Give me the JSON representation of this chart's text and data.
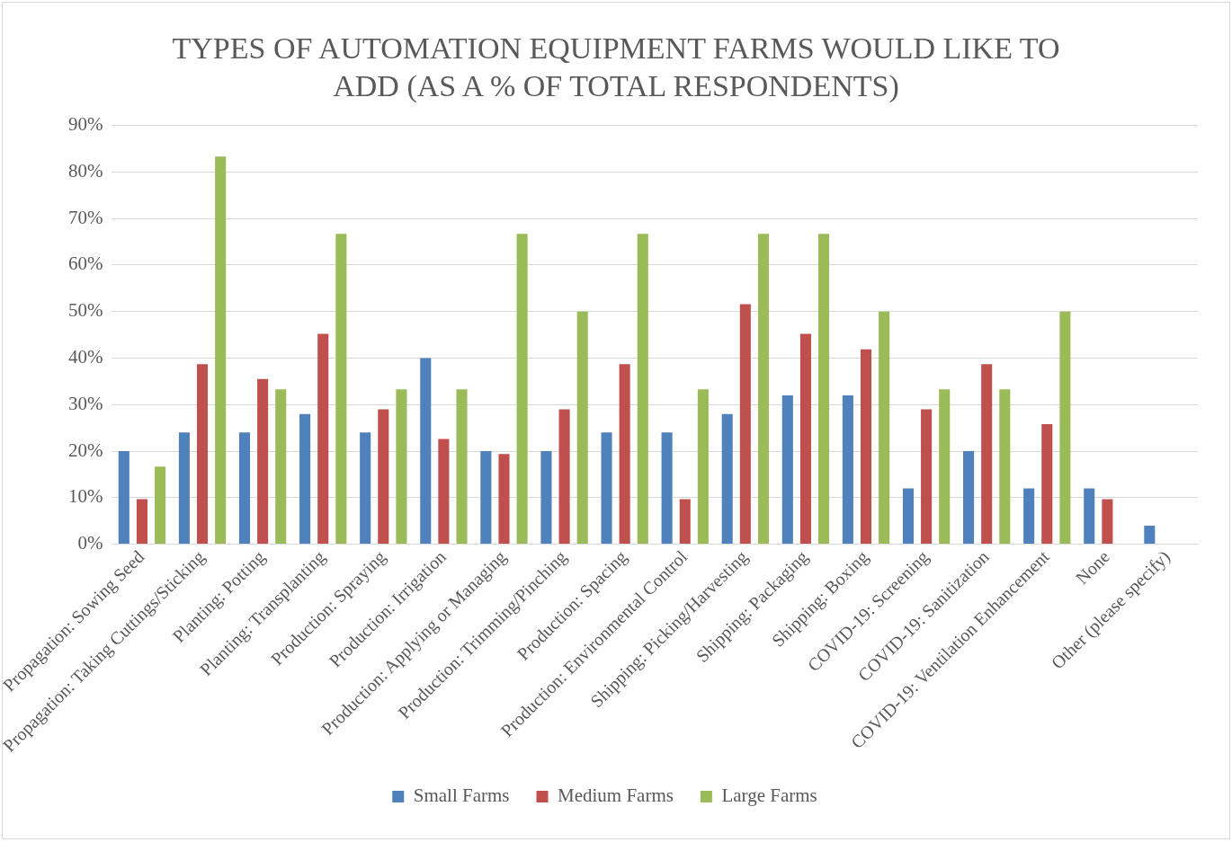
{
  "chart_data": {
    "type": "bar",
    "title": "TYPES OF AUTOMATION EQUIPMENT FARMS WOULD LIKE TO ADD (AS A % OF TOTAL RESPONDENTS)",
    "categories": [
      "Propagation: Sowing Seed",
      "Propagation: Taking Cuttings/Sticking",
      "Planting: Potting",
      "Planting: Transplanting",
      "Production: Spraying",
      "Production: Irrigation",
      "Production: Applying or Managing",
      "Production: Trimming/Pinching",
      "Production: Spacing",
      "Production: Environmental Control",
      "Shipping: Picking/Harvesting",
      "Shipping: Packaging",
      "Shipping: Boxing",
      "COVID-19: Screening",
      "COVID-19: Sanitization",
      "COVID-19: Ventilation Enhancement",
      "None",
      "Other (please specify)"
    ],
    "series": [
      {
        "name": "Small Farms",
        "color": "#4f81bd",
        "values": [
          20,
          24,
          24,
          28,
          24,
          40,
          20,
          20,
          24,
          24,
          28,
          32,
          32,
          12,
          20,
          12,
          12,
          4
        ]
      },
      {
        "name": "Medium Farms",
        "color": "#c0504d",
        "values": [
          9.7,
          38.7,
          35.5,
          45.2,
          29,
          22.6,
          19.4,
          29,
          38.7,
          9.7,
          51.6,
          45.2,
          41.9,
          29,
          38.7,
          25.8,
          9.7,
          0
        ]
      },
      {
        "name": "Large Farms",
        "color": "#9bbb59",
        "values": [
          16.7,
          83.3,
          33.3,
          66.7,
          33.3,
          33.3,
          66.7,
          50,
          66.7,
          33.3,
          66.7,
          66.7,
          50,
          33.3,
          33.3,
          50,
          0,
          0
        ]
      }
    ],
    "ylim": [
      0,
      90
    ],
    "yticks": [
      {
        "value": 0,
        "label": "0%"
      },
      {
        "value": 10,
        "label": "10%"
      },
      {
        "value": 20,
        "label": "20%"
      },
      {
        "value": 30,
        "label": "30%"
      },
      {
        "value": 40,
        "label": "40%"
      },
      {
        "value": 50,
        "label": "50%"
      },
      {
        "value": 60,
        "label": "60%"
      },
      {
        "value": 70,
        "label": "70%"
      },
      {
        "value": 80,
        "label": "80%"
      },
      {
        "value": 90,
        "label": "90%"
      }
    ],
    "grid": "y",
    "legend": "bottom"
  }
}
